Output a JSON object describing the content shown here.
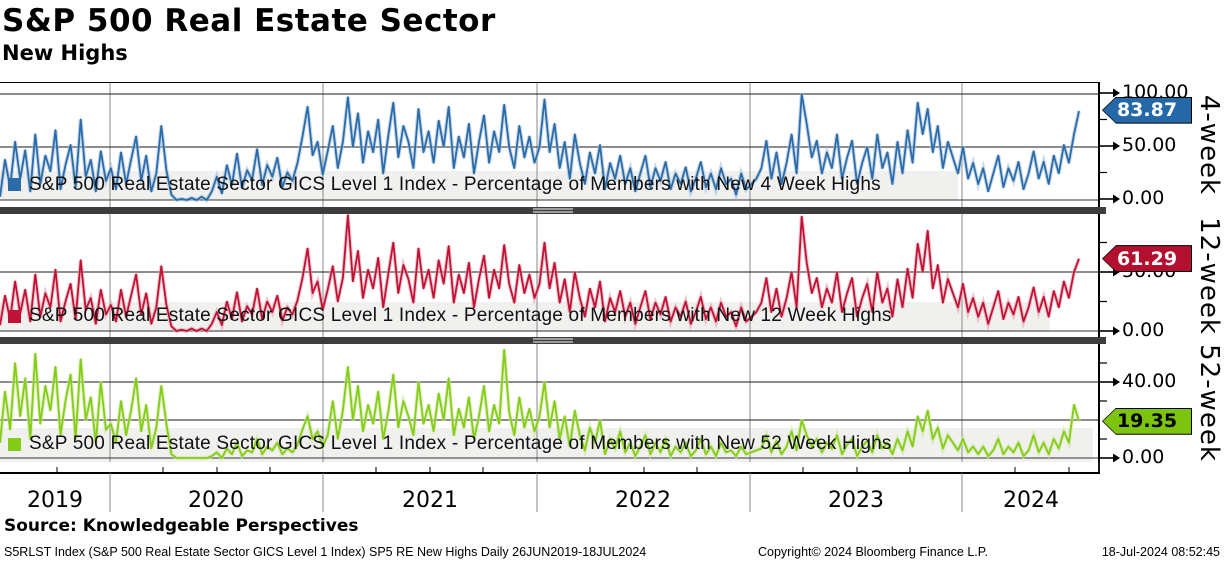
{
  "header": {
    "title": "S&P 500 Real Estate Sector",
    "subtitle": "New Highs"
  },
  "source_line": "Source: Knowledgeable Perspectives",
  "footer": {
    "left": "S5RLST Index (S&P 500 Real Estate Sector GICS Level 1 Index) SP5 RE New Highs  Daily 26JUN2019-18JUL2024",
    "center": "Copyright© 2024 Bloomberg Finance L.P.",
    "right": "18-Jul-2024 08:52:45"
  },
  "chart_data": {
    "type": "line",
    "x_tick_labels": [
      "2019",
      "2020",
      "2021",
      "2022",
      "2023",
      "2024"
    ],
    "x_range": "26JUN2019-18JUL2024",
    "grid": true,
    "legend_position": "inside-bottom-left",
    "panels": [
      {
        "id": "new-4-week-highs",
        "label": "4-week",
        "legend": "S&P 500 Real Estate Sector GICS Level 1 Index - Percentage of Members with New 4 Week Highs",
        "color": "#2b6ca8",
        "halo_color": "#a3c0dc",
        "badge_color": "#2468a8",
        "badge_text_color": "#ffffff",
        "last_value": 83.87,
        "last_label": "83.87",
        "ylim": [
          0,
          100
        ],
        "yticks": [
          {
            "value": 100,
            "label": "100.00"
          },
          {
            "value": 50,
            "label": "50.00"
          },
          {
            "value": 0,
            "label": "0.00"
          }
        ],
        "grid_values": [
          100,
          50
        ],
        "minor_ticks": [
          75,
          25
        ],
        "series": [
          3,
          38,
          12,
          55,
          20,
          47,
          8,
          62,
          15,
          42,
          27,
          66,
          10,
          33,
          52,
          12,
          76,
          22,
          38,
          8,
          46,
          18,
          30,
          10,
          45,
          15,
          38,
          60,
          18,
          42,
          8,
          25,
          70,
          28,
          5,
          0,
          1,
          0,
          2,
          0,
          3,
          0,
          8,
          22,
          6,
          33,
          14,
          44,
          11,
          28,
          19,
          48,
          14,
          33,
          22,
          40,
          12,
          26,
          18,
          35,
          60,
          88,
          42,
          55,
          24,
          46,
          70,
          30,
          55,
          97,
          50,
          82,
          35,
          65,
          45,
          76,
          25,
          60,
          92,
          40,
          70,
          55,
          30,
          86,
          45,
          65,
          35,
          75,
          50,
          88,
          30,
          60,
          40,
          72,
          25,
          55,
          80,
          35,
          65,
          45,
          90,
          50,
          30,
          70,
          40,
          60,
          35,
          50,
          95,
          45,
          72,
          30,
          55,
          20,
          62,
          35,
          15,
          45,
          25,
          52,
          10,
          35,
          20,
          42,
          15,
          30,
          8,
          25,
          42,
          12,
          30,
          18,
          36,
          10,
          25,
          15,
          31,
          8,
          20,
          36,
          12,
          25,
          10,
          30,
          15,
          20,
          5,
          25,
          10,
          15,
          20,
          30,
          56,
          20,
          45,
          15,
          35,
          62,
          25,
          100,
          72,
          40,
          56,
          25,
          45,
          30,
          62,
          20,
          40,
          56,
          15,
          35,
          50,
          20,
          62,
          30,
          45,
          15,
          55,
          25,
          66,
          35,
          92,
          62,
          86,
          45,
          70,
          30,
          55,
          40,
          25,
          50,
          20,
          35,
          15,
          30,
          8,
          25,
          42,
          12,
          30,
          18,
          36,
          10,
          25,
          46,
          20,
          36,
          15,
          42,
          25,
          52,
          35,
          62,
          83.87
        ]
      },
      {
        "id": "new-12-week-highs",
        "label": "12-week",
        "legend": "S&P 500 Real Estate Sector GICS Level 1 Index - Percentage of Members with New 12 Week Highs",
        "color": "#c11236",
        "halo_color": "#e2a0ae",
        "badge_color": "#b30f2f",
        "badge_text_color": "#ffffff",
        "last_value": 61.29,
        "last_label": "61.29",
        "ylim": [
          0,
          100
        ],
        "yticks": [
          {
            "value": 50,
            "label": "50.00"
          },
          {
            "value": 0,
            "label": "0.00"
          }
        ],
        "grid_values": [
          50
        ],
        "minor_ticks": [
          75,
          25
        ],
        "series": [
          5,
          30,
          10,
          42,
          15,
          35,
          8,
          48,
          12,
          32,
          20,
          52,
          8,
          25,
          40,
          10,
          60,
          18,
          28,
          6,
          35,
          14,
          22,
          8,
          35,
          12,
          30,
          48,
          14,
          32,
          6,
          20,
          55,
          22,
          4,
          0,
          1,
          0,
          2,
          0,
          2,
          0,
          6,
          16,
          5,
          25,
          10,
          33,
          8,
          21,
          14,
          36,
          10,
          25,
          16,
          30,
          9,
          20,
          14,
          26,
          45,
          70,
          32,
          42,
          18,
          35,
          55,
          25,
          45,
          100,
          42,
          68,
          28,
          52,
          36,
          62,
          20,
          48,
          75,
          32,
          56,
          44,
          24,
          70,
          36,
          52,
          28,
          60,
          40,
          72,
          24,
          48,
          32,
          58,
          20,
          44,
          64,
          28,
          52,
          36,
          73,
          40,
          24,
          56,
          32,
          48,
          28,
          40,
          75,
          36,
          58,
          24,
          44,
          16,
          50,
          28,
          12,
          36,
          20,
          42,
          8,
          28,
          16,
          34,
          12,
          24,
          6,
          20,
          34,
          10,
          24,
          14,
          29,
          8,
          20,
          12,
          25,
          6,
          16,
          29,
          10,
          20,
          8,
          24,
          12,
          16,
          4,
          20,
          8,
          12,
          16,
          24,
          45,
          16,
          36,
          12,
          28,
          50,
          20,
          97,
          58,
          32,
          45,
          20,
          36,
          24,
          50,
          16,
          32,
          45,
          12,
          28,
          40,
          16,
          50,
          24,
          36,
          12,
          44,
          20,
          53,
          28,
          74,
          50,
          85,
          36,
          56,
          24,
          44,
          32,
          20,
          40,
          16,
          28,
          12,
          24,
          6,
          20,
          34,
          10,
          24,
          14,
          29,
          8,
          20,
          37,
          16,
          29,
          12,
          34,
          20,
          42,
          28,
          50,
          61.29
        ]
      },
      {
        "id": "new-52-week-highs",
        "label": "52-week",
        "legend": "S&P 500 Real Estate Sector GICS Level 1 Index - Percentage of Members with New 52 Week Highs",
        "color": "#85cc16",
        "halo_color": "#c9e89a",
        "badge_color": "#7dc40f",
        "badge_text_color": "#000000",
        "last_value": 19.35,
        "last_label": "19.35",
        "ylim": [
          0,
          60
        ],
        "yticks": [
          {
            "value": 40,
            "label": "40.00"
          },
          {
            "value": 0,
            "label": "0.00"
          }
        ],
        "grid_values": [
          40,
          20
        ],
        "minor_ticks": [
          50,
          30,
          10
        ],
        "series": [
          8,
          35,
          15,
          50,
          22,
          42,
          10,
          55,
          18,
          38,
          25,
          48,
          12,
          30,
          44,
          10,
          52,
          20,
          32,
          8,
          40,
          15,
          18,
          8,
          30,
          12,
          25,
          42,
          14,
          28,
          5,
          16,
          38,
          18,
          2,
          0,
          0,
          0,
          0,
          0,
          0,
          0,
          1,
          3,
          0,
          5,
          2,
          8,
          1,
          4,
          3,
          10,
          2,
          6,
          4,
          8,
          2,
          5,
          3,
          7,
          15,
          22,
          10,
          14,
          6,
          12,
          30,
          10,
          25,
          48,
          20,
          38,
          14,
          28,
          18,
          35,
          10,
          24,
          44,
          16,
          30,
          22,
          12,
          40,
          18,
          28,
          14,
          34,
          20,
          42,
          12,
          26,
          16,
          32,
          10,
          22,
          38,
          14,
          28,
          18,
          57,
          24,
          12,
          32,
          16,
          26,
          14,
          22,
          40,
          16,
          30,
          10,
          22,
          6,
          25,
          12,
          4,
          16,
          8,
          20,
          2,
          10,
          5,
          14,
          3,
          8,
          1,
          6,
          12,
          2,
          8,
          3,
          10,
          1,
          6,
          3,
          8,
          1,
          4,
          10,
          2,
          6,
          1,
          8,
          3,
          4,
          1,
          6,
          2,
          3,
          4,
          5,
          12,
          3,
          9,
          2,
          6,
          14,
          4,
          20,
          12,
          6,
          10,
          3,
          8,
          5,
          12,
          2,
          7,
          10,
          1,
          6,
          9,
          3,
          12,
          5,
          8,
          2,
          10,
          4,
          14,
          6,
          22,
          14,
          25,
          10,
          16,
          5,
          12,
          8,
          4,
          10,
          3,
          6,
          2,
          6,
          1,
          4,
          10,
          2,
          6,
          3,
          8,
          1,
          4,
          12,
          3,
          8,
          2,
          10,
          5,
          14,
          8,
          28,
          19.35
        ]
      }
    ]
  }
}
